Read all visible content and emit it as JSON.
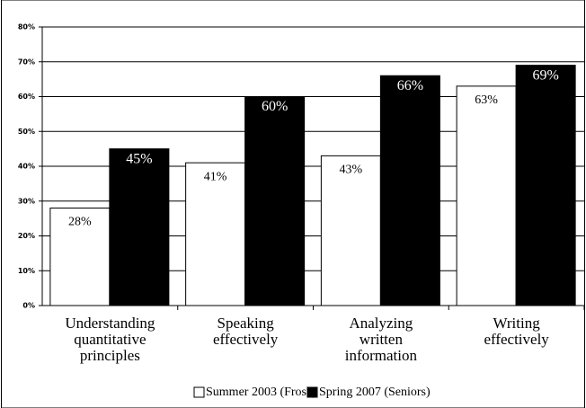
{
  "chart_data": {
    "type": "bar",
    "categories": [
      [
        "Understanding",
        "quantitative",
        "principles"
      ],
      [
        "Speaking",
        "effectively"
      ],
      [
        "Analyzing",
        "written",
        "information"
      ],
      [
        "Writing",
        "effectively"
      ]
    ],
    "series": [
      {
        "name": "Summer 2003 (Frosh)",
        "color": "#ffffff",
        "values": [
          28,
          41,
          43,
          63
        ],
        "value_labels": [
          "28%",
          "41%",
          "43%",
          "63%"
        ]
      },
      {
        "name": "Spring 2007 (Seniors)",
        "color": "#000000",
        "values": [
          45,
          60,
          66,
          69
        ],
        "value_labels": [
          "45%",
          "60%",
          "66%",
          "69%"
        ]
      }
    ],
    "ylim": [
      0,
      80
    ],
    "yticks": [
      {
        "value": 0,
        "label": "0%"
      },
      {
        "value": 10,
        "label": "10%"
      },
      {
        "value": 20,
        "label": "20%"
      },
      {
        "value": 30,
        "label": "30%"
      },
      {
        "value": 40,
        "label": "40%"
      },
      {
        "value": 50,
        "label": "50%"
      },
      {
        "value": 60,
        "label": "60%"
      },
      {
        "value": 70,
        "label": "70%"
      },
      {
        "value": 80,
        "label": "80%"
      }
    ],
    "grid": true
  }
}
